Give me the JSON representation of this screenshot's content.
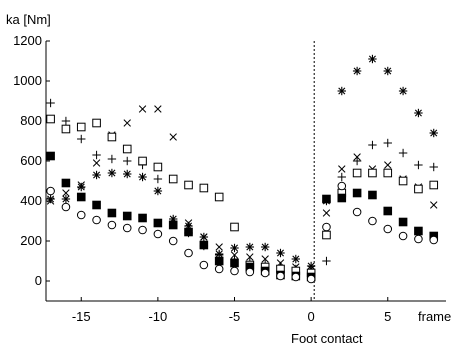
{
  "chart_data": {
    "type": "scatter",
    "ylabel": "ka [Nm]",
    "xlabel": "frame",
    "annotation": "Foot contact",
    "xlim": [
      -17.3,
      8.8
    ],
    "ylim": [
      -100,
      1200
    ],
    "xticks": [
      -15,
      -10,
      -5,
      0,
      5
    ],
    "xtick_labels": [
      "-15",
      "-10",
      "-5",
      "0",
      "5"
    ],
    "yticks": [
      0,
      200,
      400,
      600,
      800,
      1000,
      1200
    ],
    "ytick_labels": [
      "0",
      "200",
      "400",
      "600",
      "800",
      "1000",
      "1200"
    ],
    "vline_x": 0.2,
    "grid": false,
    "series": [
      {
        "marker": "asterisk",
        "points": [
          [
            -17,
            410
          ],
          [
            -16,
            410
          ],
          [
            -15,
            470
          ],
          [
            -14,
            530
          ],
          [
            -13,
            540
          ],
          [
            -12,
            535
          ],
          [
            -11,
            520
          ],
          [
            -10,
            450
          ],
          [
            -9,
            310
          ],
          [
            -8,
            275
          ],
          [
            -7,
            220
          ],
          [
            -6,
            135
          ],
          [
            -5,
            165
          ],
          [
            -4,
            170
          ],
          [
            -3,
            170
          ],
          [
            -2,
            140
          ],
          [
            -1,
            110
          ],
          [
            0,
            75
          ],
          [
            1,
            400
          ],
          [
            2,
            950
          ],
          [
            3,
            1050
          ],
          [
            4,
            1110
          ],
          [
            5,
            1050
          ],
          [
            6,
            950
          ],
          [
            7,
            840
          ],
          [
            8,
            740
          ]
        ]
      },
      {
        "marker": "plus",
        "points": [
          [
            -17,
            890
          ],
          [
            -16,
            800
          ],
          [
            -15,
            710
          ],
          [
            -14,
            630
          ],
          [
            -13,
            610
          ],
          [
            -12,
            600
          ],
          [
            -11,
            580
          ],
          [
            -10,
            510
          ],
          [
            -9,
            300
          ],
          [
            -8,
            240
          ],
          [
            -7,
            175
          ],
          [
            -6,
            130
          ],
          [
            -5,
            110
          ],
          [
            -4,
            95
          ],
          [
            -3,
            85
          ],
          [
            -2,
            75
          ],
          [
            -1,
            60
          ],
          [
            0,
            45
          ],
          [
            1,
            100
          ],
          [
            2,
            520
          ],
          [
            3,
            600
          ],
          [
            4,
            680
          ],
          [
            5,
            690
          ],
          [
            6,
            640
          ],
          [
            7,
            580
          ],
          [
            8,
            570
          ]
        ]
      },
      {
        "marker": "x",
        "points": [
          [
            -17,
            400
          ],
          [
            -16,
            440
          ],
          [
            -15,
            480
          ],
          [
            -14,
            590
          ],
          [
            -13,
            730
          ],
          [
            -12,
            790
          ],
          [
            -11,
            860
          ],
          [
            -10,
            860
          ],
          [
            -9,
            720
          ],
          [
            -8,
            290
          ],
          [
            -7,
            220
          ],
          [
            -6,
            170
          ],
          [
            -5,
            130
          ],
          [
            -4,
            120
          ],
          [
            -3,
            110
          ],
          [
            -2,
            90
          ],
          [
            -1,
            70
          ],
          [
            0,
            60
          ],
          [
            1,
            340
          ],
          [
            2,
            560
          ],
          [
            3,
            620
          ],
          [
            4,
            560
          ],
          [
            5,
            580
          ],
          [
            6,
            510
          ],
          [
            7,
            470
          ],
          [
            8,
            380
          ]
        ]
      },
      {
        "marker": "square",
        "points": [
          [
            -17,
            810
          ],
          [
            -16,
            760
          ],
          [
            -15,
            770
          ],
          [
            -14,
            790
          ],
          [
            -13,
            720
          ],
          [
            -12,
            660
          ],
          [
            -11,
            600
          ],
          [
            -10,
            570
          ],
          [
            -9,
            510
          ],
          [
            -8,
            480
          ],
          [
            -7,
            465
          ],
          [
            -6,
            420
          ],
          [
            -5,
            270
          ],
          [
            -4,
            80
          ],
          [
            -3,
            70
          ],
          [
            -2,
            60
          ],
          [
            -1,
            50
          ],
          [
            0,
            40
          ],
          [
            1,
            230
          ],
          [
            2,
            440
          ],
          [
            3,
            540
          ],
          [
            4,
            540
          ],
          [
            5,
            540
          ],
          [
            6,
            500
          ],
          [
            7,
            460
          ],
          [
            8,
            480
          ]
        ]
      },
      {
        "marker": "filled-square",
        "points": [
          [
            -17,
            625
          ],
          [
            -16,
            490
          ],
          [
            -15,
            420
          ],
          [
            -14,
            380
          ],
          [
            -13,
            340
          ],
          [
            -12,
            325
          ],
          [
            -11,
            315
          ],
          [
            -10,
            290
          ],
          [
            -9,
            280
          ],
          [
            -8,
            245
          ],
          [
            -7,
            180
          ],
          [
            -6,
            100
          ],
          [
            -5,
            90
          ],
          [
            -4,
            70
          ],
          [
            -3,
            50
          ],
          [
            -2,
            30
          ],
          [
            -1,
            25
          ],
          [
            0,
            20
          ],
          [
            1,
            410
          ],
          [
            2,
            415
          ],
          [
            3,
            440
          ],
          [
            4,
            430
          ],
          [
            5,
            350
          ],
          [
            6,
            295
          ],
          [
            7,
            250
          ],
          [
            8,
            225
          ]
        ]
      },
      {
        "marker": "circle",
        "points": [
          [
            -17,
            450
          ],
          [
            -16,
            370
          ],
          [
            -15,
            330
          ],
          [
            -14,
            305
          ],
          [
            -13,
            280
          ],
          [
            -12,
            265
          ],
          [
            -11,
            255
          ],
          [
            -10,
            235
          ],
          [
            -9,
            200
          ],
          [
            -8,
            140
          ],
          [
            -7,
            80
          ],
          [
            -6,
            60
          ],
          [
            -5,
            50
          ],
          [
            -4,
            45
          ],
          [
            -3,
            40
          ],
          [
            -2,
            25
          ],
          [
            -1,
            20
          ],
          [
            0,
            10
          ],
          [
            1,
            270
          ],
          [
            2,
            475
          ],
          [
            3,
            345
          ],
          [
            4,
            300
          ],
          [
            5,
            260
          ],
          [
            6,
            225
          ],
          [
            7,
            210
          ],
          [
            8,
            205
          ]
        ]
      }
    ]
  }
}
